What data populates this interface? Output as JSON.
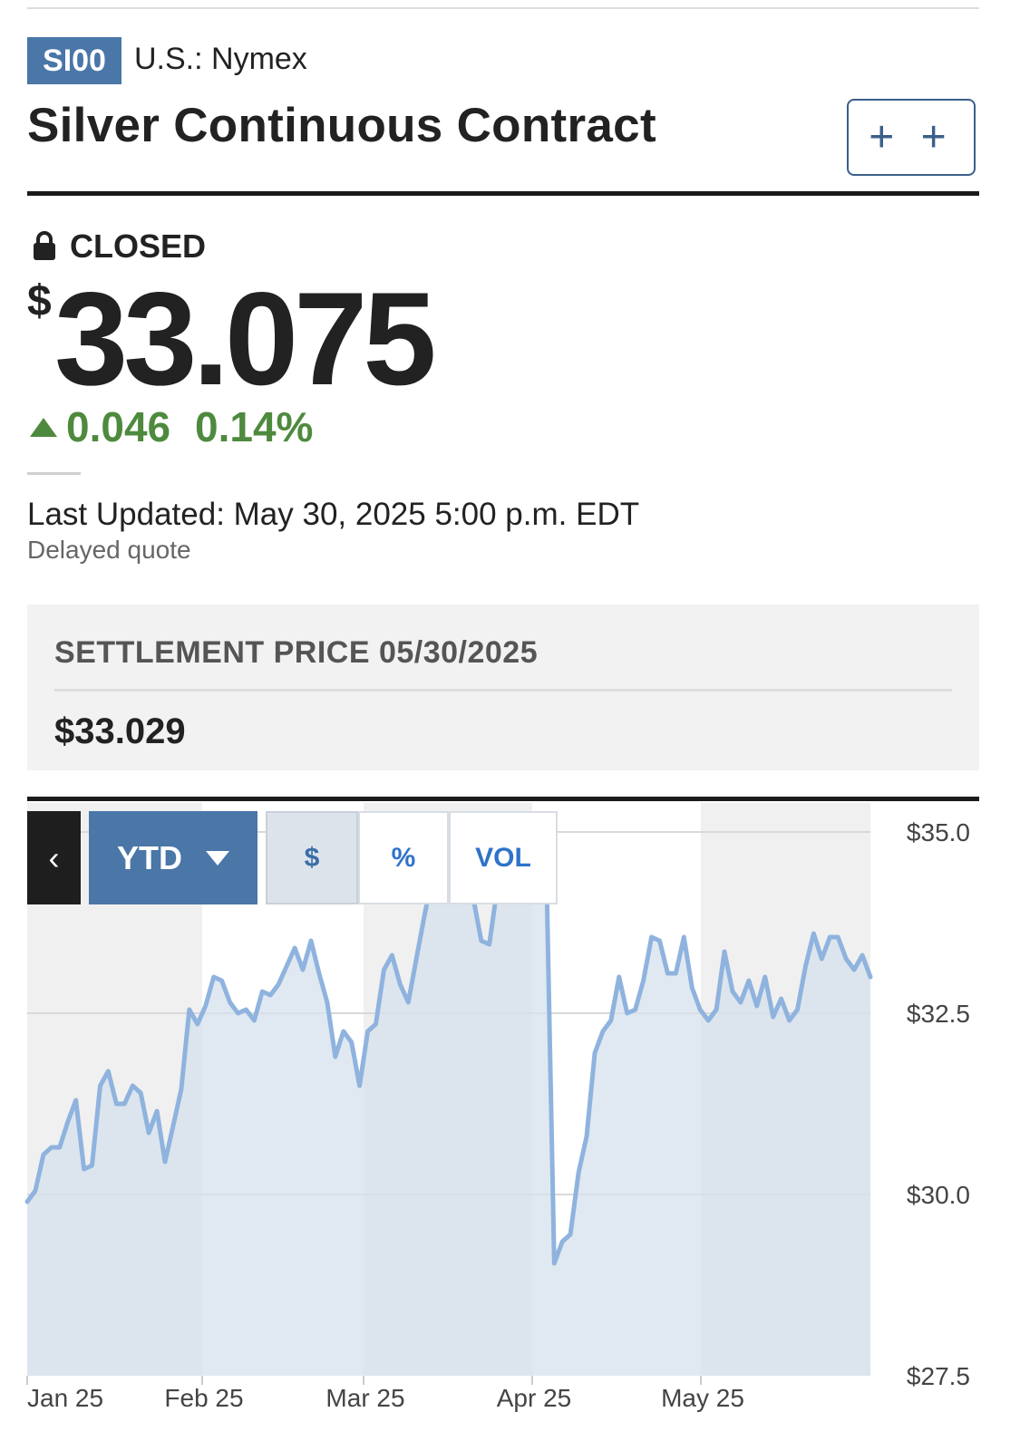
{
  "header": {
    "ticker": "SI00",
    "exchange": "U.S.: Nymex",
    "title": "Silver Continuous Contract",
    "watchlist_label": "+ +"
  },
  "quote": {
    "status": "CLOSED",
    "currency_symbol": "$",
    "price": "33.075",
    "change": "0.046",
    "change_percent": "0.14%",
    "direction": "up",
    "last_updated": "Last Updated: May 30, 2025 5:00 p.m. EDT",
    "delayed_note": "Delayed quote"
  },
  "settlement": {
    "label": "SETTLEMENT PRICE 05/30/2025",
    "value": "$33.029"
  },
  "chart_controls": {
    "back_label": "‹",
    "range_label": "YTD",
    "modes": [
      "$",
      "%",
      "VOL"
    ],
    "active_mode": "$"
  },
  "colors": {
    "accent": "#4a76a8",
    "positive": "#4e8a3e",
    "line": "#8fb3de",
    "area": "#d6e1ec"
  },
  "chart_data": {
    "type": "area",
    "x_labels": [
      "Jan 25",
      "Feb 25",
      "Mar 25",
      "Apr 25",
      "May 25"
    ],
    "y_ticks": [
      "$35.0",
      "$32.5",
      "$30.0",
      "$27.5"
    ],
    "ylim": [
      27.5,
      35.4
    ],
    "grid": true,
    "series": [
      {
        "values": [
          29.9,
          30.05,
          30.55,
          30.65,
          30.65,
          31.0,
          31.3,
          30.35,
          30.4,
          31.5,
          31.7,
          31.25,
          31.25,
          31.5,
          31.4,
          30.85,
          31.15,
          30.45,
          30.95,
          31.45,
          32.55,
          32.35,
          32.6,
          33.0,
          32.95,
          32.65,
          32.5,
          32.55,
          32.4,
          32.8,
          32.75,
          32.9,
          33.15,
          33.4,
          33.1,
          33.5,
          33.05,
          32.65,
          31.9,
          32.25,
          32.1,
          31.5,
          32.25,
          32.35,
          33.1,
          33.3,
          32.9,
          32.65,
          33.25,
          33.85,
          34.4,
          34.55,
          34.45,
          34.95,
          34.35,
          34.1,
          33.5,
          33.45,
          34.25,
          34.3,
          35.05,
          34.8,
          34.55,
          34.3,
          34.7,
          29.05,
          29.35,
          29.45,
          30.3,
          30.8,
          31.95,
          32.25,
          32.4,
          33.0,
          32.5,
          32.55,
          32.95,
          33.55,
          33.5,
          33.05,
          33.05,
          33.55,
          32.85,
          32.55,
          32.4,
          32.55,
          33.35,
          32.8,
          32.65,
          32.95,
          32.6,
          33.0,
          32.45,
          32.7,
          32.4,
          32.55,
          33.15,
          33.6,
          33.25,
          33.55,
          33.55,
          33.25,
          33.1,
          33.3,
          33.0
        ]
      }
    ]
  }
}
